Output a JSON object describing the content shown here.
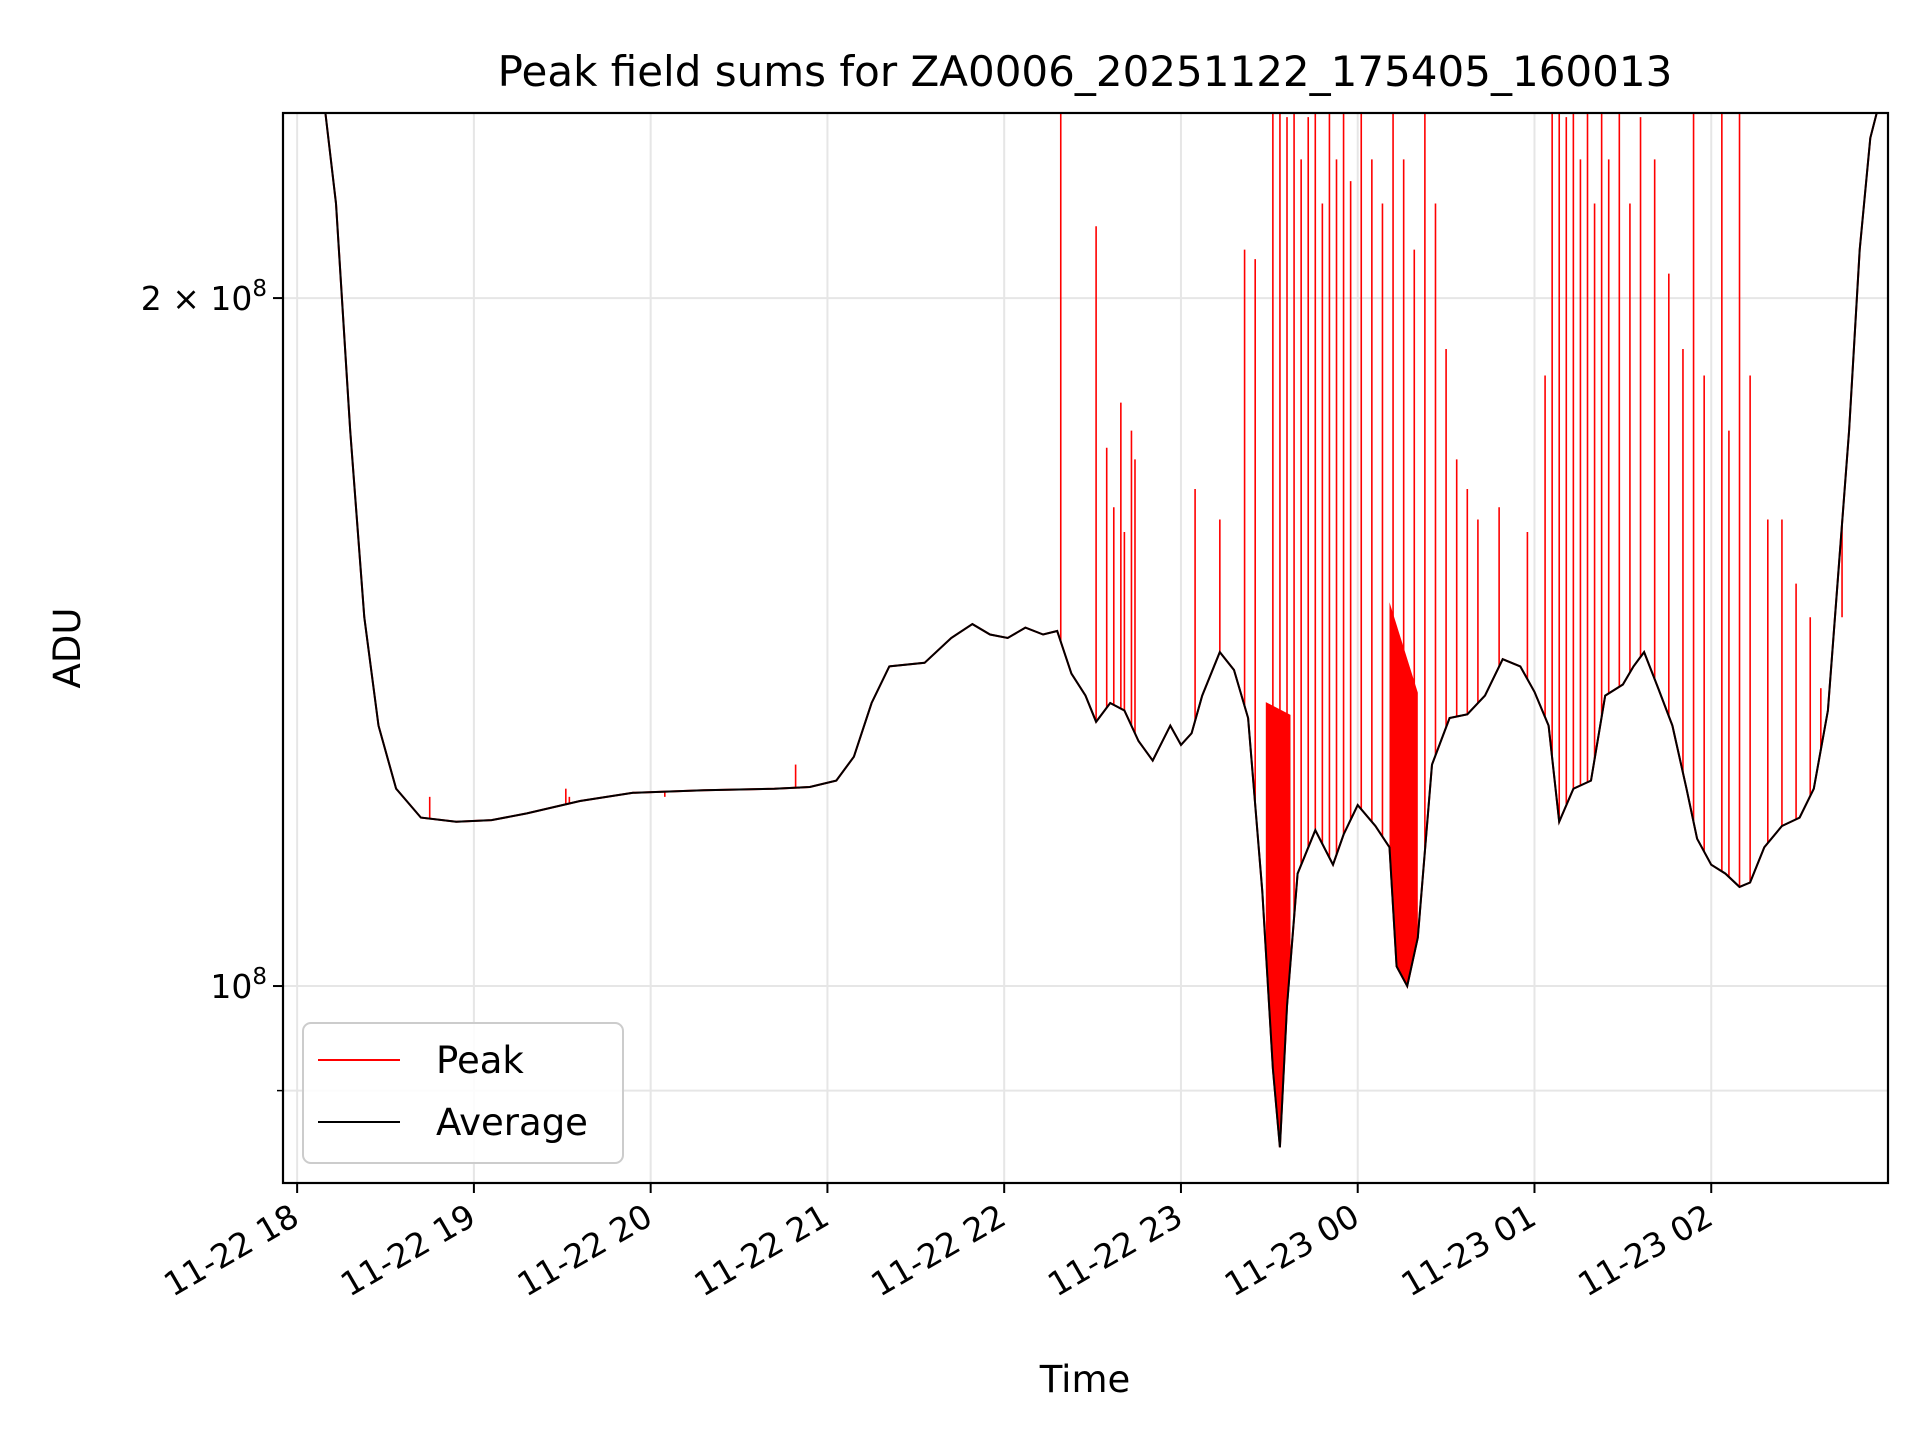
{
  "chart_data": {
    "type": "line",
    "title": "Peak field sums for ZA0006_20251122_175405_160013",
    "xlabel": "Time",
    "ylabel": "ADU",
    "yscale": "log",
    "ylim": [
      82000000,
      241000000
    ],
    "xlim_hours": [
      17.92,
      27.0
    ],
    "grid": true,
    "legend_position": "lower-left",
    "x_ticks": [
      {
        "hour": 18,
        "label": "11-22 18"
      },
      {
        "hour": 19,
        "label": "11-22 19"
      },
      {
        "hour": 20,
        "label": "11-22 20"
      },
      {
        "hour": 21,
        "label": "11-22 21"
      },
      {
        "hour": 22,
        "label": "11-22 22"
      },
      {
        "hour": 23,
        "label": "11-22 23"
      },
      {
        "hour": 24,
        "label": "11-23 00"
      },
      {
        "hour": 25,
        "label": "11-23 01"
      },
      {
        "hour": 26,
        "label": "11-23 02"
      }
    ],
    "y_major_ticks": [
      {
        "value": 100000000,
        "base": "10",
        "exp": "8",
        "coef": ""
      },
      {
        "value": 200000000,
        "base": "10",
        "exp": "8",
        "coef": "2 × "
      }
    ],
    "y_minor_ticks": [
      90000000
    ],
    "series": [
      {
        "name": "Peak",
        "color": "#ff0000",
        "spikes": [
          [
            18.75,
            121000000.0
          ],
          [
            19.52,
            122000000.0
          ],
          [
            19.54,
            121000000.0
          ],
          [
            20.08,
            121000000.0
          ],
          [
            20.82,
            125000000.0
          ],
          [
            20.84,
            122000000.0
          ],
          [
            22.32,
            245000000.0
          ],
          [
            22.52,
            215000000.0
          ],
          [
            22.58,
            172000000.0
          ],
          [
            22.62,
            162000000.0
          ],
          [
            22.66,
            180000000.0
          ],
          [
            22.68,
            158000000.0
          ],
          [
            22.72,
            175000000.0
          ],
          [
            22.74,
            170000000.0
          ],
          [
            23.08,
            165000000.0
          ],
          [
            23.22,
            160000000.0
          ],
          [
            23.36,
            210000000.0
          ],
          [
            23.42,
            208000000.0
          ],
          [
            23.52,
            245000000.0
          ],
          [
            23.56,
            245000000.0
          ],
          [
            23.6,
            240000000.0
          ],
          [
            23.64,
            245000000.0
          ],
          [
            23.68,
            230000000.0
          ],
          [
            23.72,
            240000000.0
          ],
          [
            23.76,
            245000000.0
          ],
          [
            23.8,
            220000000.0
          ],
          [
            23.84,
            245000000.0
          ],
          [
            23.88,
            230000000.0
          ],
          [
            23.92,
            245000000.0
          ],
          [
            23.96,
            225000000.0
          ],
          [
            24.02,
            245000000.0
          ],
          [
            24.08,
            230000000.0
          ],
          [
            24.14,
            220000000.0
          ],
          [
            24.2,
            245000000.0
          ],
          [
            24.26,
            230000000.0
          ],
          [
            24.32,
            210000000.0
          ],
          [
            24.38,
            245000000.0
          ],
          [
            24.44,
            220000000.0
          ],
          [
            24.5,
            190000000.0
          ],
          [
            24.56,
            170000000.0
          ],
          [
            24.62,
            165000000.0
          ],
          [
            24.68,
            160000000.0
          ],
          [
            24.8,
            162000000.0
          ],
          [
            24.96,
            158000000.0
          ],
          [
            25.06,
            185000000.0
          ],
          [
            25.1,
            245000000.0
          ],
          [
            25.14,
            245000000.0
          ],
          [
            25.18,
            240000000.0
          ],
          [
            25.22,
            245000000.0
          ],
          [
            25.26,
            230000000.0
          ],
          [
            25.3,
            245000000.0
          ],
          [
            25.34,
            220000000.0
          ],
          [
            25.38,
            245000000.0
          ],
          [
            25.42,
            230000000.0
          ],
          [
            25.48,
            245000000.0
          ],
          [
            25.54,
            220000000.0
          ],
          [
            25.6,
            240000000.0
          ],
          [
            25.68,
            230000000.0
          ],
          [
            25.76,
            205000000.0
          ],
          [
            25.84,
            190000000.0
          ],
          [
            25.9,
            245000000.0
          ],
          [
            25.96,
            185000000.0
          ],
          [
            26.06,
            245000000.0
          ],
          [
            26.1,
            175000000.0
          ],
          [
            26.16,
            245000000.0
          ],
          [
            26.22,
            185000000.0
          ],
          [
            26.32,
            160000000.0
          ],
          [
            26.4,
            160000000.0
          ],
          [
            26.48,
            150000000.0
          ],
          [
            26.56,
            145000000.0
          ],
          [
            26.62,
            135000000.0
          ],
          [
            26.74,
            145000000.0
          ]
        ],
        "dip_bands": [
          [
            23.48,
            23.62
          ],
          [
            24.18,
            24.34
          ]
        ]
      },
      {
        "name": "Average",
        "color": "#000000",
        "points": [
          [
            17.92,
            242000000.0
          ],
          [
            18.1,
            242000000.0
          ],
          [
            18.16,
            241000000.0
          ],
          [
            18.22,
            220000000.0
          ],
          [
            18.3,
            175000000.0
          ],
          [
            18.38,
            145000000.0
          ],
          [
            18.46,
            130000000.0
          ],
          [
            18.56,
            122000000.0
          ],
          [
            18.7,
            118500000.0
          ],
          [
            18.9,
            118000000.0
          ],
          [
            19.1,
            118200000.0
          ],
          [
            19.3,
            119000000.0
          ],
          [
            19.6,
            120500000.0
          ],
          [
            19.9,
            121500000.0
          ],
          [
            20.3,
            121800000.0
          ],
          [
            20.7,
            122000000.0
          ],
          [
            20.9,
            122200000.0
          ],
          [
            21.05,
            123000000.0
          ],
          [
            21.15,
            126000000.0
          ],
          [
            21.25,
            133000000.0
          ],
          [
            21.35,
            138000000.0
          ],
          [
            21.55,
            138500000.0
          ],
          [
            21.7,
            142000000.0
          ],
          [
            21.82,
            144000000.0
          ],
          [
            21.92,
            142500000.0
          ],
          [
            22.02,
            142000000.0
          ],
          [
            22.12,
            143500000.0
          ],
          [
            22.22,
            142500000.0
          ],
          [
            22.3,
            143000000.0
          ],
          [
            22.38,
            137000000.0
          ],
          [
            22.46,
            134000000.0
          ],
          [
            22.52,
            130500000.0
          ],
          [
            22.6,
            133000000.0
          ],
          [
            22.68,
            132000000.0
          ],
          [
            22.76,
            128000000.0
          ],
          [
            22.84,
            125500000.0
          ],
          [
            22.94,
            130000000.0
          ],
          [
            23.0,
            127500000.0
          ],
          [
            23.06,
            129000000.0
          ],
          [
            23.12,
            134000000.0
          ],
          [
            23.22,
            140000000.0
          ],
          [
            23.3,
            137500000.0
          ],
          [
            23.38,
            131000000.0
          ],
          [
            23.46,
            110000000.0
          ],
          [
            23.52,
            92000000.0
          ],
          [
            23.56,
            85000000.0
          ],
          [
            23.6,
            98000000.0
          ],
          [
            23.66,
            112000000.0
          ],
          [
            23.76,
            117000000.0
          ],
          [
            23.86,
            113000000.0
          ],
          [
            23.92,
            116500000.0
          ],
          [
            24.0,
            120000000.0
          ],
          [
            24.1,
            117500000.0
          ],
          [
            24.18,
            115000000.0
          ],
          [
            24.22,
            102000000.0
          ],
          [
            24.28,
            100000000.0
          ],
          [
            24.34,
            105000000.0
          ],
          [
            24.42,
            125000000.0
          ],
          [
            24.52,
            131000000.0
          ],
          [
            24.62,
            131500000.0
          ],
          [
            24.72,
            134000000.0
          ],
          [
            24.82,
            139000000.0
          ],
          [
            24.92,
            138000000.0
          ],
          [
            25.0,
            134500000.0
          ],
          [
            25.08,
            130000000.0
          ],
          [
            25.14,
            118000000.0
          ],
          [
            25.22,
            122000000.0
          ],
          [
            25.32,
            123000000.0
          ],
          [
            25.4,
            134000000.0
          ],
          [
            25.5,
            135500000.0
          ],
          [
            25.56,
            138000000.0
          ],
          [
            25.62,
            140000000.0
          ],
          [
            25.7,
            135000000.0
          ],
          [
            25.78,
            130000000.0
          ],
          [
            25.86,
            122000000.0
          ],
          [
            25.92,
            116000000.0
          ],
          [
            26.0,
            113000000.0
          ],
          [
            26.08,
            112000000.0
          ],
          [
            26.16,
            110500000.0
          ],
          [
            26.22,
            111000000.0
          ],
          [
            26.3,
            115000000.0
          ],
          [
            26.4,
            117500000.0
          ],
          [
            26.5,
            118500000.0
          ],
          [
            26.58,
            122000000.0
          ],
          [
            26.66,
            132000000.0
          ],
          [
            26.72,
            152000000.0
          ],
          [
            26.78,
            175000000.0
          ],
          [
            26.84,
            210000000.0
          ],
          [
            26.9,
            235000000.0
          ],
          [
            26.96,
            245000000.0
          ],
          [
            27.0,
            245000000.0
          ]
        ]
      }
    ]
  }
}
